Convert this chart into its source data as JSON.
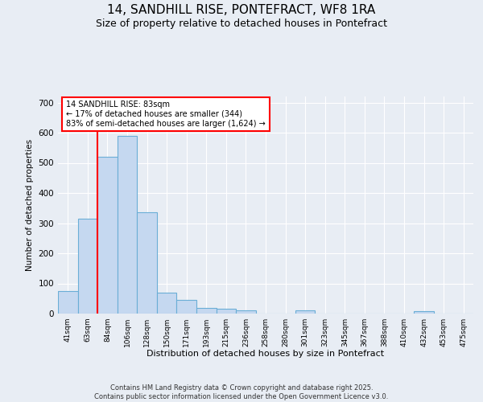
{
  "title_line1": "14, SANDHILL RISE, PONTEFRACT, WF8 1RA",
  "title_line2": "Size of property relative to detached houses in Pontefract",
  "xlabel": "Distribution of detached houses by size in Pontefract",
  "ylabel": "Number of detached properties",
  "footnote": "Contains HM Land Registry data © Crown copyright and database right 2025.\nContains public sector information licensed under the Open Government Licence v3.0.",
  "bin_labels": [
    "41sqm",
    "63sqm",
    "84sqm",
    "106sqm",
    "128sqm",
    "150sqm",
    "171sqm",
    "193sqm",
    "215sqm",
    "236sqm",
    "258sqm",
    "280sqm",
    "301sqm",
    "323sqm",
    "345sqm",
    "367sqm",
    "388sqm",
    "410sqm",
    "432sqm",
    "453sqm",
    "475sqm"
  ],
  "bar_values": [
    75,
    315,
    520,
    590,
    335,
    70,
    45,
    20,
    15,
    10,
    0,
    0,
    10,
    0,
    0,
    0,
    0,
    0,
    7,
    0,
    0
  ],
  "bar_color": "#c5d8f0",
  "bar_edge_color": "#6aaed6",
  "vline_x_index": 2,
  "vline_color": "red",
  "annotation_text": "14 SANDHILL RISE: 83sqm\n← 17% of detached houses are smaller (344)\n83% of semi-detached houses are larger (1,624) →",
  "annotation_box_color": "white",
  "annotation_box_edge": "red",
  "ylim": [
    0,
    720
  ],
  "yticks": [
    0,
    100,
    200,
    300,
    400,
    500,
    600,
    700
  ],
  "background_color": "#e8edf4",
  "plot_bg_color": "#e8edf4",
  "title_fontsize": 11,
  "subtitle_fontsize": 9,
  "grid_color": "white",
  "num_bins": 21
}
